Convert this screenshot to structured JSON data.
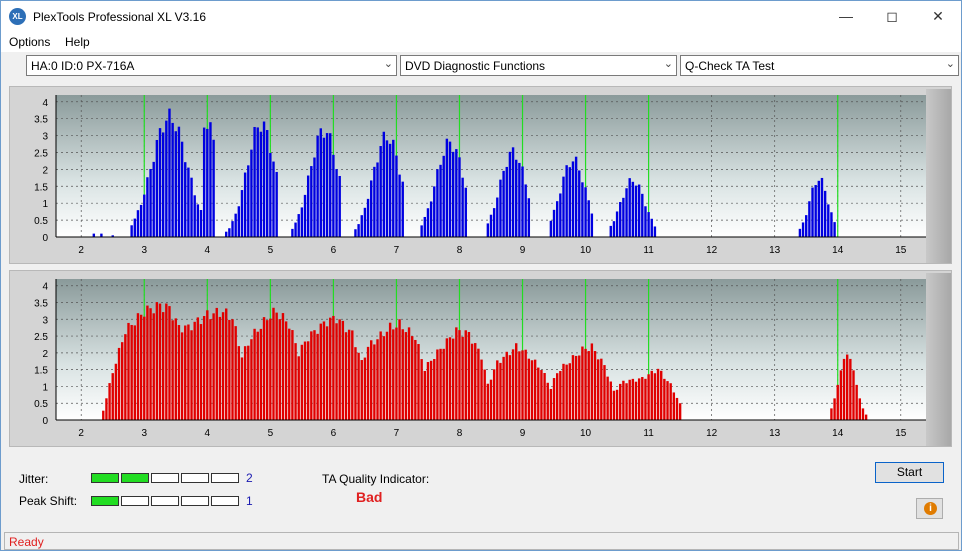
{
  "window": {
    "title": "PlexTools Professional XL V3.16",
    "icon_text": "XL"
  },
  "menu": {
    "options": "Options",
    "help": "Help"
  },
  "selectors": {
    "drive": "HA:0 ID:0  PX-716A",
    "function": "DVD Diagnostic Functions",
    "test": "Q-Check TA Test"
  },
  "chart_data": [
    {
      "type": "bar",
      "series": [
        {
          "name": "",
          "color": "#0000e0"
        }
      ],
      "x_ticks": [
        "2",
        "3",
        "4",
        "5",
        "6",
        "7",
        "8",
        "9",
        "10",
        "11",
        "12",
        "13",
        "14",
        "15"
      ],
      "y_ticks": [
        "0",
        "0.5",
        "1",
        "1.5",
        "2",
        "2.5",
        "3",
        "3.5",
        "4"
      ],
      "xlim": [
        1.6,
        15.4
      ],
      "ylim": [
        0,
        4.2
      ],
      "green_lines_x": [
        3,
        4,
        5,
        6,
        7,
        8,
        9,
        10,
        11,
        14
      ],
      "peaks": [
        {
          "x": [
            2.2,
            2.32,
            2.5
          ],
          "y": [
            0.1,
            0.1,
            0.05
          ]
        },
        {
          "range": [
            2.8,
            3.9
          ],
          "peak_x": 3.4,
          "peak": 3.8,
          "spread": 0.38
        },
        {
          "range": [
            3.95,
            4.1
          ],
          "peak_x": 4.0,
          "peak": 3.7,
          "spread": 0.2
        },
        {
          "range": [
            4.3,
            5.1
          ],
          "peak_x": 4.85,
          "peak": 3.6,
          "spread": 0.3
        },
        {
          "range": [
            5.35,
            6.1
          ],
          "peak_x": 5.85,
          "peak": 3.4,
          "spread": 0.3
        },
        {
          "range": [
            6.35,
            7.1
          ],
          "peak_x": 6.85,
          "peak": 3.2,
          "spread": 0.3
        },
        {
          "range": [
            7.4,
            8.1
          ],
          "peak_x": 7.85,
          "peak": 3.0,
          "spread": 0.3
        },
        {
          "range": [
            8.45,
            9.1
          ],
          "peak_x": 8.85,
          "peak": 2.7,
          "spread": 0.28
        },
        {
          "range": [
            9.45,
            10.1
          ],
          "peak_x": 9.8,
          "peak": 2.45,
          "spread": 0.27
        },
        {
          "range": [
            10.4,
            11.1
          ],
          "peak_x": 10.75,
          "peak": 1.8,
          "spread": 0.26
        },
        {
          "range": [
            13.4,
            13.95
          ],
          "peak_x": 13.7,
          "peak": 1.85,
          "spread": 0.2
        }
      ]
    },
    {
      "type": "bar",
      "series": [
        {
          "name": "",
          "color": "#e00000"
        }
      ],
      "x_ticks": [
        "2",
        "3",
        "4",
        "5",
        "6",
        "7",
        "8",
        "9",
        "10",
        "11",
        "12",
        "13",
        "14",
        "15"
      ],
      "y_ticks": [
        "0",
        "0.5",
        "1",
        "1.5",
        "2",
        "2.5",
        "3",
        "3.5",
        "4"
      ],
      "xlim": [
        1.6,
        15.4
      ],
      "ylim": [
        0,
        4.2
      ],
      "green_lines_x": [
        3,
        4,
        5,
        6,
        7,
        8,
        9,
        10,
        11,
        14
      ],
      "envelope": [
        [
          2.35,
          0.3
        ],
        [
          2.5,
          1.5
        ],
        [
          2.7,
          2.8
        ],
        [
          3.0,
          3.4
        ],
        [
          3.25,
          3.6
        ],
        [
          3.4,
          3.5
        ],
        [
          3.55,
          2.9
        ],
        [
          3.7,
          2.9
        ],
        [
          4.0,
          3.3
        ],
        [
          4.25,
          3.4
        ],
        [
          4.4,
          3.2
        ],
        [
          4.55,
          2.0
        ],
        [
          4.7,
          2.6
        ],
        [
          5.0,
          3.3
        ],
        [
          5.1,
          3.4
        ],
        [
          5.3,
          3.0
        ],
        [
          5.45,
          2.1
        ],
        [
          5.6,
          2.6
        ],
        [
          5.9,
          3.1
        ],
        [
          6.05,
          3.2
        ],
        [
          6.3,
          2.7
        ],
        [
          6.45,
          1.8
        ],
        [
          6.55,
          2.3
        ],
        [
          6.9,
          2.9
        ],
        [
          7.05,
          3.0
        ],
        [
          7.3,
          2.6
        ],
        [
          7.45,
          1.6
        ],
        [
          7.6,
          2.0
        ],
        [
          7.95,
          2.8
        ],
        [
          8.15,
          2.7
        ],
        [
          8.35,
          2.0
        ],
        [
          8.45,
          1.1
        ],
        [
          8.6,
          1.8
        ],
        [
          8.9,
          2.3
        ],
        [
          9.0,
          2.2
        ],
        [
          9.3,
          1.6
        ],
        [
          9.45,
          1.0
        ],
        [
          9.55,
          1.5
        ],
        [
          9.95,
          2.2
        ],
        [
          10.1,
          2.3
        ],
        [
          10.3,
          1.7
        ],
        [
          10.45,
          0.9
        ],
        [
          10.6,
          1.2
        ],
        [
          10.9,
          1.3
        ],
        [
          11.15,
          1.6
        ],
        [
          11.35,
          1.1
        ],
        [
          11.5,
          0.5
        ],
        [
          11.55,
          0.1
        ]
      ],
      "end_peak": {
        "range": [
          13.9,
          14.45
        ],
        "peak_x": 14.15,
        "peak": 1.95,
        "spread": 0.17
      }
    }
  ],
  "bottom": {
    "jitter_label": "Jitter:",
    "jitter_value": "2",
    "jitter_level": 2,
    "peak_shift_label": "Peak Shift:",
    "peak_shift_value": "1",
    "peak_shift_level": 1,
    "meter_cells": 5,
    "ta_label": "TA Quality Indicator:",
    "ta_value": "Bad",
    "start_label": "Start",
    "info_glyph": "i"
  },
  "status": {
    "text": "Ready"
  }
}
